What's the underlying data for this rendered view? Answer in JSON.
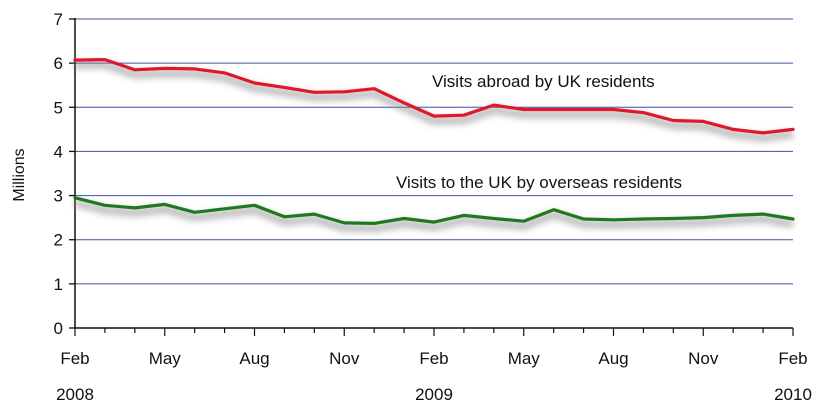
{
  "chart_data": {
    "type": "line",
    "ylabel": "Millions",
    "ylim": [
      0,
      7
    ],
    "yticks": [
      0,
      1,
      2,
      3,
      4,
      5,
      6,
      7
    ],
    "grid": true,
    "x_months": [
      "Feb",
      "Mar",
      "Apr",
      "May",
      "Jun",
      "Jul",
      "Aug",
      "Sep",
      "Oct",
      "Nov",
      "Dec",
      "Jan",
      "Feb",
      "Mar",
      "Apr",
      "May",
      "Jun",
      "Jul",
      "Aug",
      "Sep",
      "Oct",
      "Nov",
      "Dec",
      "Jan",
      "Feb"
    ],
    "x_tick_labels": [
      {
        "index": 0,
        "label": "Feb"
      },
      {
        "index": 3,
        "label": "May"
      },
      {
        "index": 6,
        "label": "Aug"
      },
      {
        "index": 9,
        "label": "Nov"
      },
      {
        "index": 12,
        "label": "Feb"
      },
      {
        "index": 15,
        "label": "May"
      },
      {
        "index": 18,
        "label": "Aug"
      },
      {
        "index": 21,
        "label": "Nov"
      },
      {
        "index": 24,
        "label": "Feb"
      }
    ],
    "year_labels": [
      {
        "index": 0,
        "label": "2008"
      },
      {
        "index": 12,
        "label": "2009"
      },
      {
        "index": 24,
        "label": "2010"
      }
    ],
    "series": [
      {
        "name": "Visits abroad by UK residents",
        "color": "#e0182d",
        "values": [
          6.07,
          6.08,
          5.85,
          5.88,
          5.87,
          5.78,
          5.55,
          5.45,
          5.34,
          5.35,
          5.42,
          5.1,
          4.8,
          4.82,
          5.05,
          4.95,
          4.95,
          4.95,
          4.95,
          4.88,
          4.7,
          4.68,
          4.5,
          4.42,
          4.5
        ]
      },
      {
        "name": "Visits to the UK by overseas residents",
        "color": "#1f7a1f",
        "values": [
          2.95,
          2.78,
          2.72,
          2.8,
          2.62,
          2.7,
          2.78,
          2.52,
          2.58,
          2.38,
          2.37,
          2.48,
          2.4,
          2.55,
          2.48,
          2.42,
          2.68,
          2.47,
          2.45,
          2.47,
          2.48,
          2.5,
          2.55,
          2.58,
          2.47
        ]
      }
    ],
    "annotations": [
      {
        "series": 0,
        "text": "Visits abroad by UK residents"
      },
      {
        "series": 1,
        "text": "Visits to the UK by overseas residents"
      }
    ]
  }
}
